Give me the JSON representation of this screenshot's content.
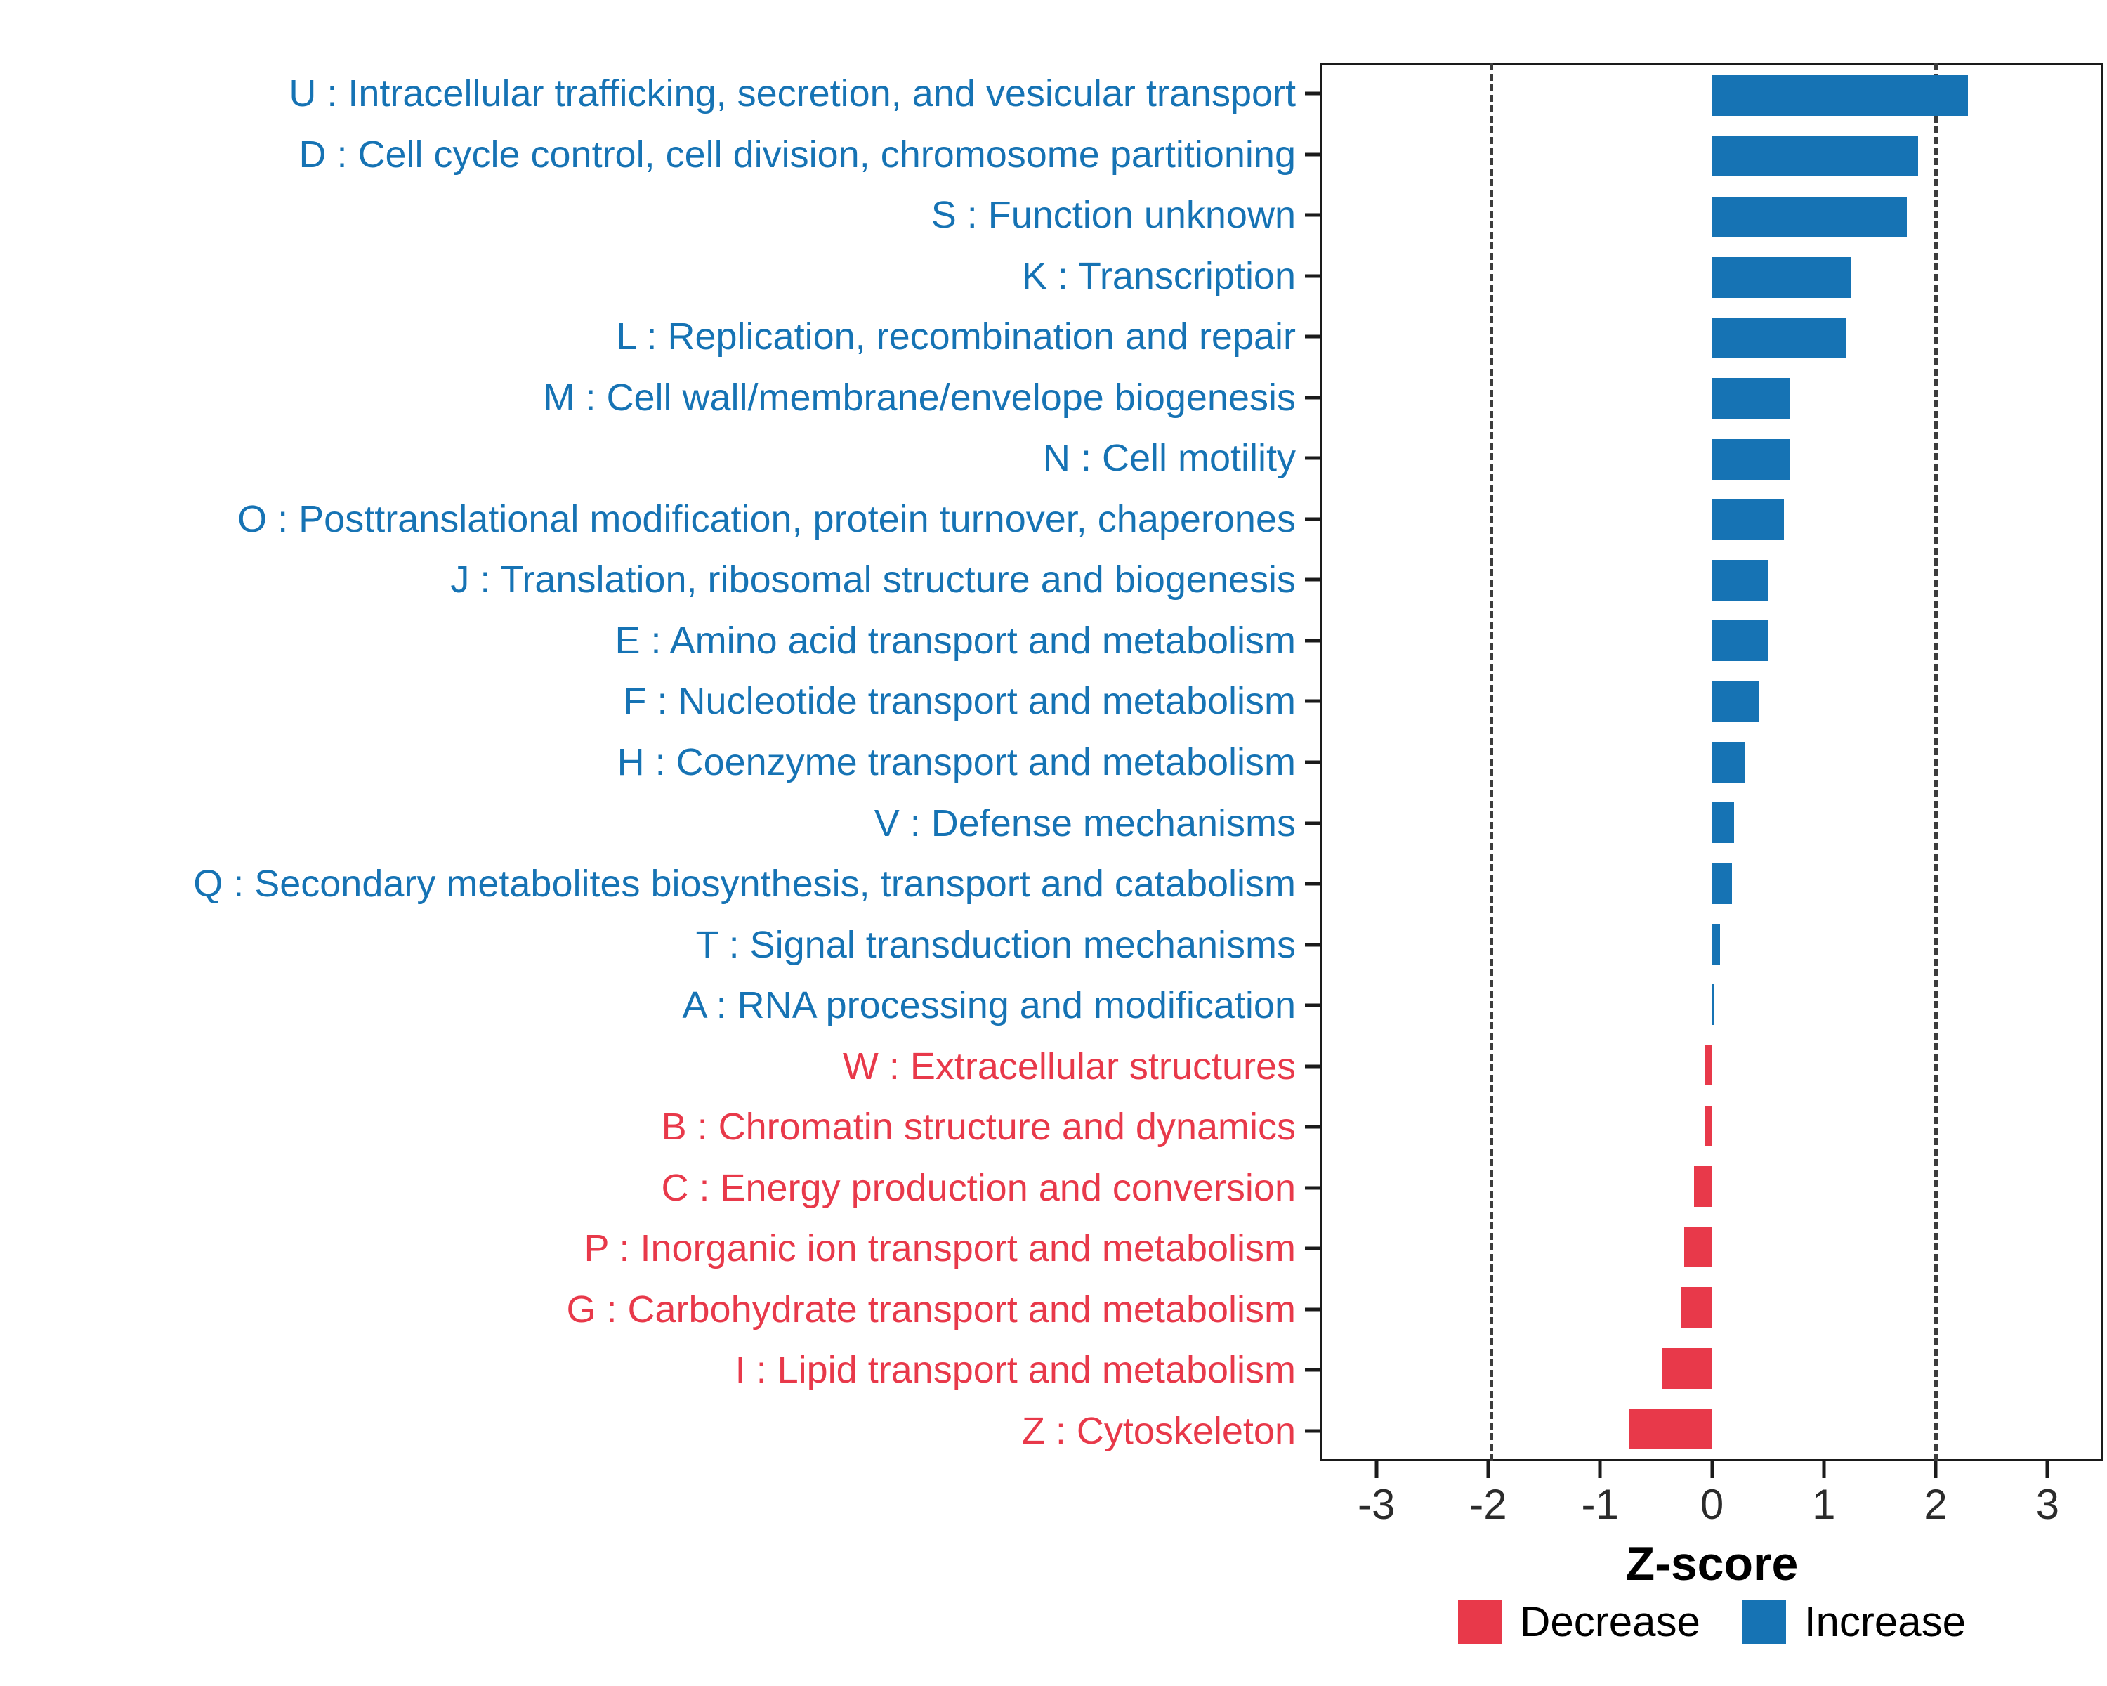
{
  "chart_data": {
    "type": "bar",
    "orientation": "horizontal",
    "title": "",
    "xlabel": "Z-score",
    "xlim": [
      -3.5,
      3.5
    ],
    "x_ticks": [
      -3,
      -2,
      -1,
      0,
      1,
      2,
      3
    ],
    "dashed_lines": [
      -2,
      2
    ],
    "grid": false,
    "legend_position": "bottom",
    "colors": {
      "increase": "#1673B4",
      "decrease": "#E8394A",
      "threshold_line": "#3c3c3c",
      "axis_text": "#2b2b2b",
      "panel_border": "#1a1a1a"
    },
    "legend": [
      {
        "label": "Decrease",
        "color": "#E8394A"
      },
      {
        "label": "Increase",
        "color": "#1673B4"
      }
    ],
    "categories": [
      {
        "label": "U : Intracellular trafficking, secretion, and vesicular transport",
        "value": 2.3,
        "group": "Increase"
      },
      {
        "label": "D : Cell cycle control, cell division, chromosome partitioning",
        "value": 1.85,
        "group": "Increase"
      },
      {
        "label": "S : Function unknown",
        "value": 1.75,
        "group": "Increase"
      },
      {
        "label": "K : Transcription",
        "value": 1.25,
        "group": "Increase"
      },
      {
        "label": "L : Replication, recombination and repair",
        "value": 1.2,
        "group": "Increase"
      },
      {
        "label": "M : Cell wall/membrane/envelope biogenesis",
        "value": 0.7,
        "group": "Increase"
      },
      {
        "label": "N : Cell motility",
        "value": 0.7,
        "group": "Increase"
      },
      {
        "label": "O : Posttranslational modification, protein turnover, chaperones",
        "value": 0.65,
        "group": "Increase"
      },
      {
        "label": "J : Translation, ribosomal structure and biogenesis",
        "value": 0.5,
        "group": "Increase"
      },
      {
        "label": "E : Amino acid transport and metabolism",
        "value": 0.5,
        "group": "Increase"
      },
      {
        "label": "F : Nucleotide transport and metabolism",
        "value": 0.42,
        "group": "Increase"
      },
      {
        "label": "H : Coenzyme transport and metabolism",
        "value": 0.3,
        "group": "Increase"
      },
      {
        "label": "V : Defense mechanisms",
        "value": 0.2,
        "group": "Increase"
      },
      {
        "label": "Q : Secondary metabolites biosynthesis, transport and catabolism",
        "value": 0.18,
        "group": "Increase"
      },
      {
        "label": "T : Signal transduction mechanisms",
        "value": 0.07,
        "group": "Increase"
      },
      {
        "label": "A : RNA processing and modification",
        "value": 0.02,
        "group": "Increase"
      },
      {
        "label": "W : Extracellular structures",
        "value": -0.06,
        "group": "Decrease"
      },
      {
        "label": "B : Chromatin structure and dynamics",
        "value": -0.06,
        "group": "Decrease"
      },
      {
        "label": "C : Energy production and conversion",
        "value": -0.16,
        "group": "Decrease"
      },
      {
        "label": "P : Inorganic ion transport and metabolism",
        "value": -0.25,
        "group": "Decrease"
      },
      {
        "label": "G : Carbohydrate transport and metabolism",
        "value": -0.28,
        "group": "Decrease"
      },
      {
        "label": "I : Lipid transport and metabolism",
        "value": -0.45,
        "group": "Decrease"
      },
      {
        "label": "Z : Cytoskeleton",
        "value": -0.75,
        "group": "Decrease"
      }
    ]
  }
}
